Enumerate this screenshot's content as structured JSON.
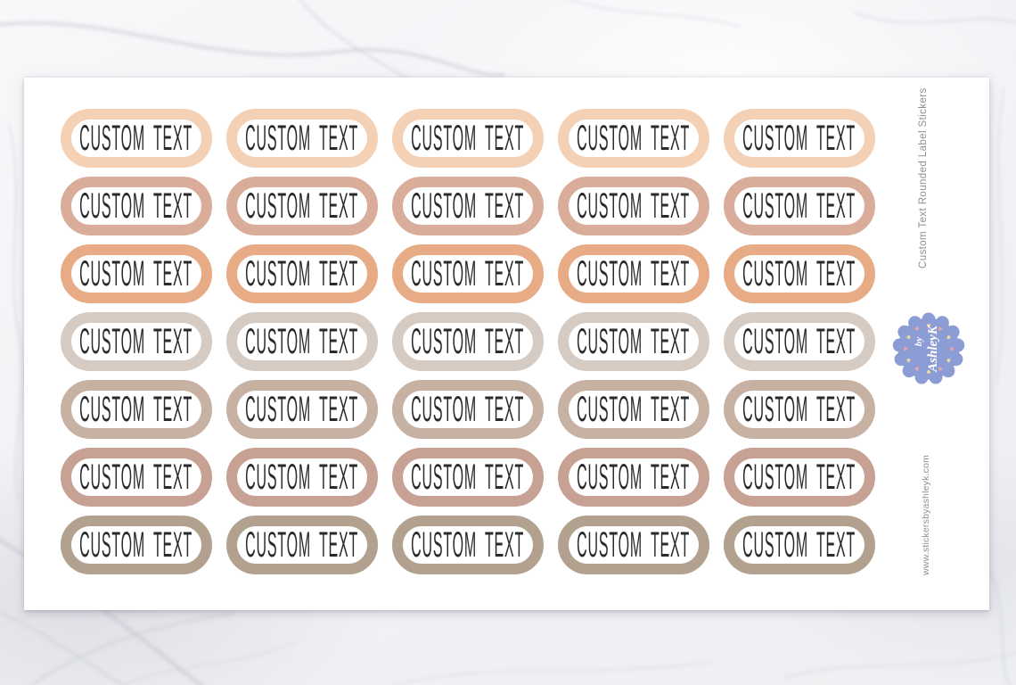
{
  "sheet": {
    "columns": 5,
    "label_text": "CUSTOM TEXT",
    "rows": [
      {
        "name": "row-1",
        "border_color": "#f4d0b5"
      },
      {
        "name": "row-2",
        "border_color": "#d9ad99"
      },
      {
        "name": "row-3",
        "border_color": "#e7ab85"
      },
      {
        "name": "row-4",
        "border_color": "#d6cbc3"
      },
      {
        "name": "row-5",
        "border_color": "#c6b1a3"
      },
      {
        "name": "row-6",
        "border_color": "#c7a193"
      },
      {
        "name": "row-7",
        "border_color": "#b2a18e"
      }
    ]
  },
  "side_text": {
    "title": "Custom Text Rounded Label Stickers",
    "website": "www.stickersbyashleyk.com"
  },
  "badge": {
    "prefix": "by",
    "name": "AshleyK",
    "background_color": "#8c9cd5",
    "text_color": "#ffffff",
    "hearts_count": 12,
    "heart_colors": [
      "#f3de9a",
      "#f0a8a0"
    ]
  },
  "colors": {
    "label_text": "#2a2a2a",
    "sheet_background": "#ffffff",
    "side_text_color": "#8f8f8f",
    "marble_vein": "#c6c7d0"
  }
}
